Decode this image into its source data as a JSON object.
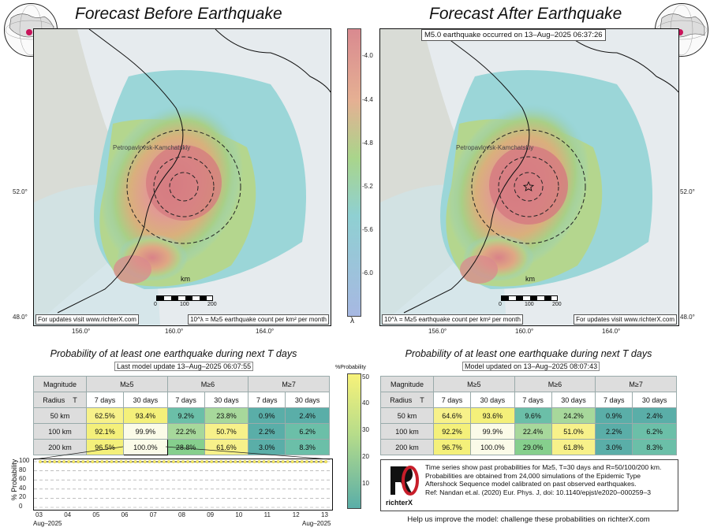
{
  "left": {
    "title": "Forecast Before Earthquake",
    "place_label": "Petropavlovsk-Kamchatskiy",
    "km_label": "km",
    "scale_ticks": [
      "0",
      "100",
      "200"
    ],
    "lon_ticks": [
      "156.0°",
      "160.0°",
      "164.0°"
    ],
    "lat_ticks": [
      "52.0°",
      "48.0°"
    ],
    "footer_left": "For updates visit www.richterX.com",
    "footer_right": "10^λ = M≥5 earthquake count per km² per month",
    "table_title": "Probability of at least one earthquake during next T days",
    "update_text": "Last model update 13–Aug–2025 06:07:55"
  },
  "right": {
    "title": "Forecast After Earthquake",
    "event_text": "M5.0 earthquake occurred on 13–Aug–2025 06:37:26",
    "place_label": "Petropavlovsk-Kamchatskiy",
    "km_label": "km",
    "scale_ticks": [
      "0",
      "100",
      "200"
    ],
    "lon_ticks": [
      "156.0°",
      "160.0°",
      "164.0°"
    ],
    "lat_ticks": [
      "52.0°",
      "48.0°"
    ],
    "footer_left": "10^λ = M≥5 earthquake count per km² per month",
    "footer_right": "For updates visit www.richterX.com",
    "table_title": "Probability of at least one earthquake during next T days",
    "update_text": "Model updated on 13–Aug–2025 08:07:43"
  },
  "colorbar_lambda": {
    "ticks": [
      "-4.0",
      "-4.4",
      "-4.8",
      "-5.2",
      "-5.6",
      "-6.0"
    ],
    "label": "λ"
  },
  "colorbar_prob": {
    "title": "%Probability",
    "ticks": [
      "50",
      "40",
      "30",
      "20",
      "10"
    ]
  },
  "table": {
    "hdr_magnitude": "Magnitude",
    "hdr_radius": "Radius",
    "hdr_t": "T",
    "mags": [
      "M≥5",
      "M≥6",
      "M≥7"
    ],
    "periods": [
      "7 days",
      "30 days"
    ],
    "radii": [
      "50 km",
      "100 km",
      "200 km"
    ]
  },
  "left_values": [
    [
      "62.5%",
      "93.4%",
      "9.2%",
      "23.8%",
      "0.9%",
      "2.4%"
    ],
    [
      "92.1%",
      "99.9%",
      "22.2%",
      "50.7%",
      "2.2%",
      "6.2%"
    ],
    [
      "96.5%",
      "100.0%",
      "28.8%",
      "61.6%",
      "3.0%",
      "8.3%"
    ]
  ],
  "right_values": [
    [
      "64.6%",
      "93.6%",
      "9.6%",
      "24.2%",
      "0.9%",
      "2.4%"
    ],
    [
      "92.2%",
      "99.9%",
      "22.4%",
      "51.0%",
      "2.2%",
      "6.2%"
    ],
    [
      "96.7%",
      "100.0%",
      "29.0%",
      "61.8%",
      "3.0%",
      "8.3%"
    ]
  ],
  "chart_data": {
    "type": "line",
    "ylabel": "% Probability",
    "ylim": [
      0,
      100
    ],
    "yticks": [
      "100",
      "80",
      "60",
      "40",
      "20",
      "0"
    ],
    "xticks": [
      "03",
      "04",
      "05",
      "06",
      "07",
      "08",
      "09",
      "10",
      "11",
      "12",
      "13"
    ],
    "x_start_label": "Aug–2025",
    "x_end_label": "Aug–2025",
    "series": [
      {
        "values": [
          99.9,
          99.9,
          99.9,
          99.9,
          99.9,
          99.9,
          99.9,
          99.9,
          99.9,
          99.9,
          99.9
        ]
      }
    ]
  },
  "info": {
    "lines": [
      "Time series show past probabilities for M≥5, T=30 days and R=50/100/200 km.",
      "Probabilities are obtained from 24,000 simulations of the Epidemic Type",
      "Aftershock Sequence model calibrated on past observed earthquakes.",
      "Ref: Nandan et.al. (2020) Eur. Phys. J, doi: 10.1140/epjst/e2020–000259–3"
    ],
    "logo_text": "richterX",
    "bottom_text": "Help us improve the model: challenge these probabilities on richterX.com"
  }
}
